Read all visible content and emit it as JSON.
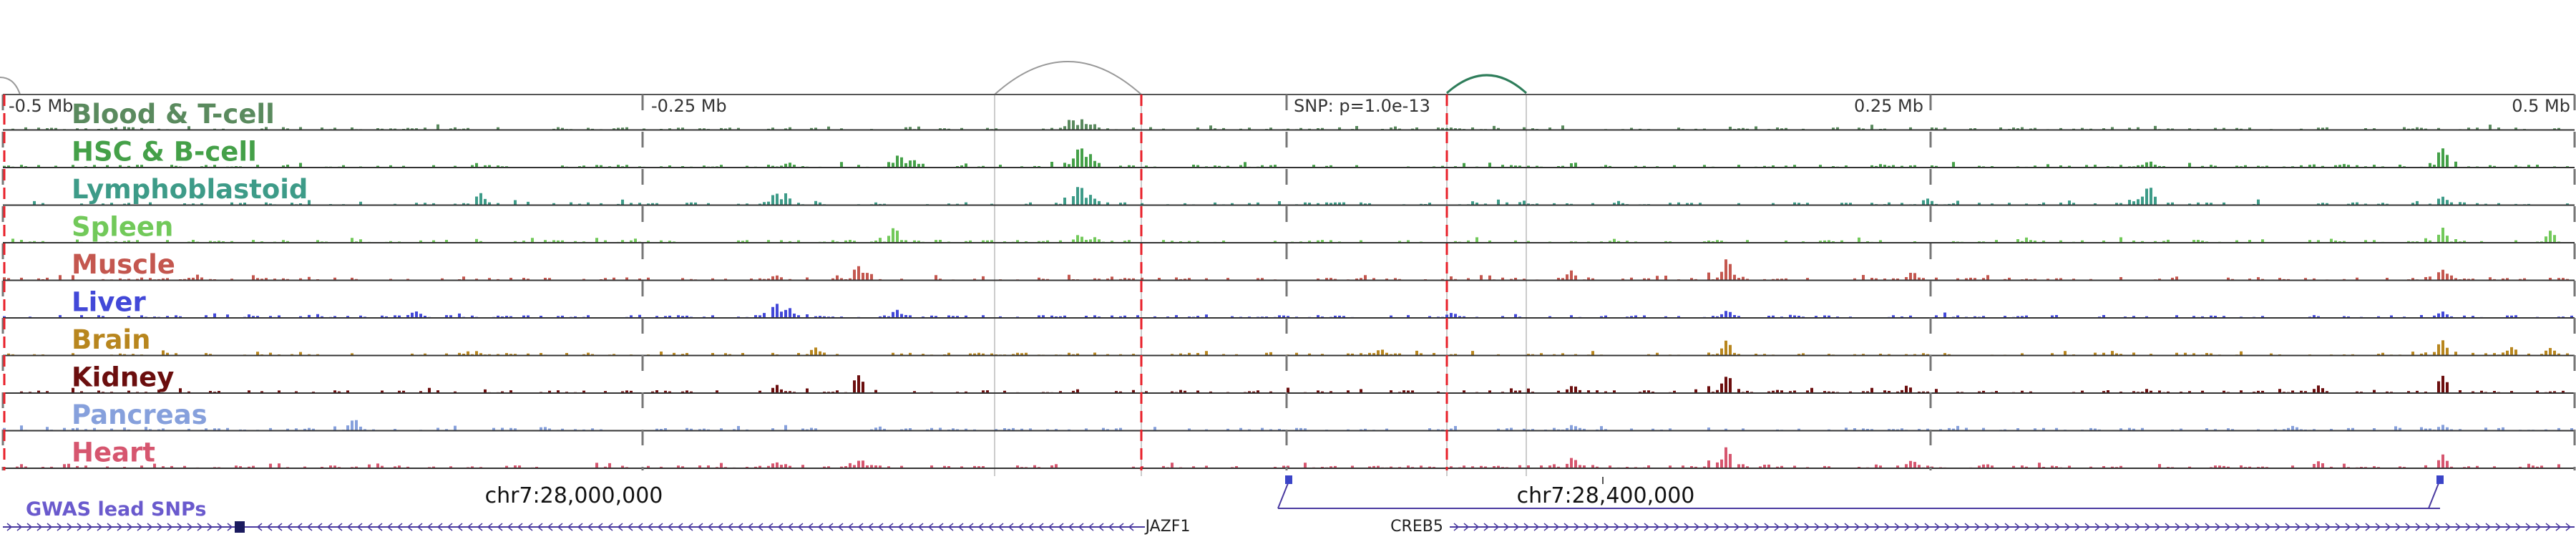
{
  "scale": {
    "markers": [
      {
        "label": "-0.5 Mb",
        "anchor": "start"
      },
      {
        "label": "-0.25 Mb",
        "anchor": "start"
      },
      {
        "label": "SNP: p=1.0e-13",
        "anchor": "start"
      },
      {
        "label": "0.25 Mb",
        "anchor": "end"
      },
      {
        "label": "0.5 Mb",
        "anchor": "end"
      }
    ]
  },
  "tracks": [
    {
      "name": "Blood & T-cell",
      "color": "#5a8a5e",
      "peaks": [
        [
          0.415,
          0.55
        ],
        [
          0.419,
          0.4
        ],
        [
          0.423,
          0.3
        ],
        [
          0.216,
          0.12
        ],
        [
          0.56,
          0.1
        ],
        [
          0.94,
          0.1
        ]
      ]
    },
    {
      "name": "HSC & B-cell",
      "color": "#44a048",
      "peaks": [
        [
          0.418,
          0.95
        ],
        [
          0.422,
          0.6
        ],
        [
          0.348,
          0.55
        ],
        [
          0.353,
          0.4
        ],
        [
          0.948,
          0.9
        ],
        [
          0.834,
          0.3
        ],
        [
          0.305,
          0.25
        ],
        [
          0.73,
          0.15
        ]
      ]
    },
    {
      "name": "Lymphoblastoid",
      "color": "#3d9b88",
      "peaks": [
        [
          0.418,
          1.0
        ],
        [
          0.422,
          0.5
        ],
        [
          0.834,
          0.95
        ],
        [
          0.3,
          0.6
        ],
        [
          0.304,
          0.45
        ],
        [
          0.185,
          0.5
        ],
        [
          0.748,
          0.3
        ],
        [
          0.948,
          0.4
        ]
      ]
    },
    {
      "name": "Spleen",
      "color": "#72c95a",
      "peaks": [
        [
          0.346,
          0.7
        ],
        [
          0.418,
          0.35
        ],
        [
          0.424,
          0.25
        ],
        [
          0.948,
          0.6
        ],
        [
          0.99,
          0.5
        ]
      ]
    },
    {
      "name": "Muscle",
      "color": "#c4574f",
      "peaks": [
        [
          0.67,
          0.95
        ],
        [
          0.332,
          0.65
        ],
        [
          0.336,
          0.4
        ],
        [
          0.609,
          0.4
        ],
        [
          0.742,
          0.35
        ],
        [
          0.948,
          0.5
        ],
        [
          0.3,
          0.25
        ],
        [
          0.95,
          0.3
        ]
      ]
    },
    {
      "name": "Liver",
      "color": "#4248d8",
      "peaks": [
        [
          0.3,
          0.6
        ],
        [
          0.305,
          0.45
        ],
        [
          0.347,
          0.35
        ],
        [
          0.16,
          0.3
        ],
        [
          0.67,
          0.35
        ],
        [
          0.948,
          0.3
        ],
        [
          0.563,
          0.25
        ]
      ]
    },
    {
      "name": "Brain",
      "color": "#b8861e",
      "peaks": [
        [
          0.67,
          0.7
        ],
        [
          0.948,
          0.65
        ],
        [
          0.315,
          0.35
        ],
        [
          0.535,
          0.3
        ],
        [
          0.975,
          0.4
        ],
        [
          0.99,
          0.35
        ]
      ]
    },
    {
      "name": "Kidney",
      "color": "#6b0e0e",
      "peaks": [
        [
          0.332,
          0.9
        ],
        [
          0.67,
          0.85
        ],
        [
          0.948,
          0.85
        ],
        [
          0.61,
          0.35
        ],
        [
          0.74,
          0.3
        ],
        [
          0.3,
          0.35
        ],
        [
          0.9,
          0.3
        ]
      ]
    },
    {
      "name": "Pancreas",
      "color": "#86a0dc",
      "peaks": [
        [
          0.136,
          0.55
        ],
        [
          0.34,
          0.2
        ],
        [
          0.61,
          0.25
        ],
        [
          0.89,
          0.2
        ],
        [
          0.948,
          0.25
        ]
      ]
    },
    {
      "name": "Heart",
      "color": "#d6566f",
      "peaks": [
        [
          0.67,
          0.95
        ],
        [
          0.333,
          0.4
        ],
        [
          0.61,
          0.5
        ],
        [
          0.742,
          0.4
        ],
        [
          0.948,
          0.55
        ],
        [
          0.3,
          0.3
        ],
        [
          0.9,
          0.3
        ]
      ]
    }
  ],
  "bottom": {
    "gwas_label": "GWAS lead SNPs",
    "gwas_color": "#6a5acd",
    "positions": [
      "chr7:28,000,000",
      "chr7:28,400,000"
    ],
    "genes": [
      {
        "name": "JAZF1",
        "strand": "-",
        "color": "#4a3aa0"
      },
      {
        "name": "CREB5",
        "strand": "+",
        "color": "#4a3aa0"
      }
    ]
  },
  "colors": {
    "snp_line": "#e8202a",
    "axis": "#555555",
    "arc": "#999999",
    "arc_highlight": "#2e7d5a",
    "gene": "#4a3aa0"
  }
}
